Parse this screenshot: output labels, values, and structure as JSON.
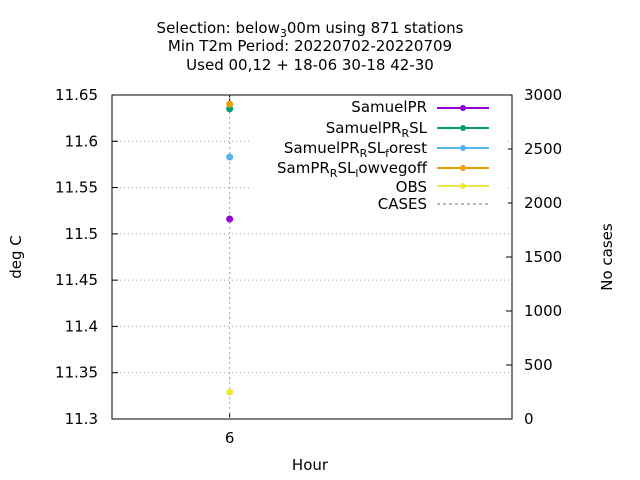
{
  "chart_data": {
    "type": "scatter",
    "title_lines": [
      "Selection: below 3 00m using    871 stations",
      "Min T2m   Period: 20220702-20220709",
      "Used  00,12  + 18-06 30-18 42-30"
    ],
    "xlabel": "Hour",
    "ylabel": "deg C",
    "y2label": "No cases",
    "x_ticks": [
      6
    ],
    "y_ticks": [
      "11.3",
      "11.35",
      "11.4",
      "11.45",
      "11.5",
      "11.55",
      "11.6",
      "11.65"
    ],
    "y2_ticks": [
      "0",
      "500",
      "1000",
      "1500",
      "2000",
      "2500",
      "3000"
    ],
    "ylim": [
      11.3,
      11.65
    ],
    "y2lim": [
      0,
      3000
    ],
    "grid": true,
    "legend_position": "top-right",
    "series": [
      {
        "name": "SamuelPR",
        "color": "#9400d3",
        "x": [
          6
        ],
        "y": [
          11.516
        ]
      },
      {
        "name": "SamuelPR_R SL",
        "color": "#009e73",
        "x": [
          6
        ],
        "y": [
          11.635
        ]
      },
      {
        "name": "SamuelPR_R SL_f orest",
        "color": "#56b4e9",
        "x": [
          6
        ],
        "y": [
          11.583
        ]
      },
      {
        "name": "SamPR_R SL_l owvegoff",
        "color": "#e69f00",
        "x": [
          6
        ],
        "y": [
          11.64
        ]
      },
      {
        "name": "OBS",
        "color": "#f0e442",
        "x": [
          6
        ],
        "y": [
          11.329
        ]
      }
    ],
    "cases": {
      "name": "CASES",
      "color": "#a0a0a4",
      "x": [
        6
      ],
      "y": [
        3000
      ]
    }
  }
}
